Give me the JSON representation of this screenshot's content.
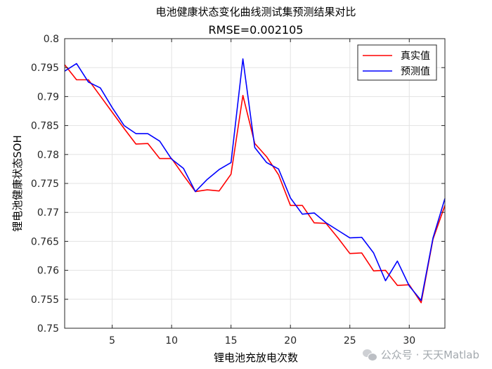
{
  "chart_data": {
    "type": "line",
    "title": "电池健康状态变化曲线测试集预测结果对比",
    "subtitle": "RMSE=0.002105",
    "xlabel": "锂电池充放电次数",
    "ylabel": "锂电池健康状态SOH",
    "xlim": [
      1,
      33
    ],
    "ylim": [
      0.75,
      0.8
    ],
    "xticks": [
      5,
      10,
      15,
      20,
      25,
      30
    ],
    "yticks": [
      0.75,
      0.755,
      0.76,
      0.765,
      0.77,
      0.775,
      0.78,
      0.785,
      0.79,
      0.795,
      0.8
    ],
    "grid": true,
    "legend_position": "top-right",
    "x": [
      1,
      2,
      3,
      4,
      5,
      6,
      7,
      8,
      9,
      10,
      11,
      12,
      13,
      14,
      15,
      16,
      17,
      18,
      19,
      20,
      21,
      22,
      23,
      24,
      25,
      26,
      27,
      28,
      29,
      30,
      31,
      32,
      33
    ],
    "series": [
      {
        "name": "真实值",
        "color": "#ff0000",
        "values": [
          0.7955,
          0.7929,
          0.7929,
          0.7901,
          0.7873,
          0.7845,
          0.7818,
          0.7819,
          0.7793,
          0.7793,
          0.7764,
          0.7736,
          0.7739,
          0.7737,
          0.7766,
          0.7902,
          0.7819,
          0.7796,
          0.7765,
          0.7712,
          0.7712,
          0.7682,
          0.7681,
          0.7656,
          0.7629,
          0.763,
          0.7599,
          0.76,
          0.7574,
          0.7575,
          0.7544,
          0.7654,
          0.7712
        ]
      },
      {
        "name": "预测值",
        "color": "#0000ff",
        "values": [
          0.7944,
          0.7957,
          0.7925,
          0.7915,
          0.7881,
          0.785,
          0.7836,
          0.7836,
          0.7823,
          0.7792,
          0.7776,
          0.7736,
          0.7757,
          0.7774,
          0.7786,
          0.7965,
          0.7812,
          0.7786,
          0.7775,
          0.7725,
          0.7697,
          0.7699,
          0.7682,
          0.7669,
          0.7656,
          0.7657,
          0.763,
          0.7582,
          0.7616,
          0.7573,
          0.7548,
          0.7656,
          0.7724
        ]
      }
    ]
  },
  "watermark": {
    "text": "公众号 · 天天Matlab",
    "icon": "wechat-icon"
  }
}
